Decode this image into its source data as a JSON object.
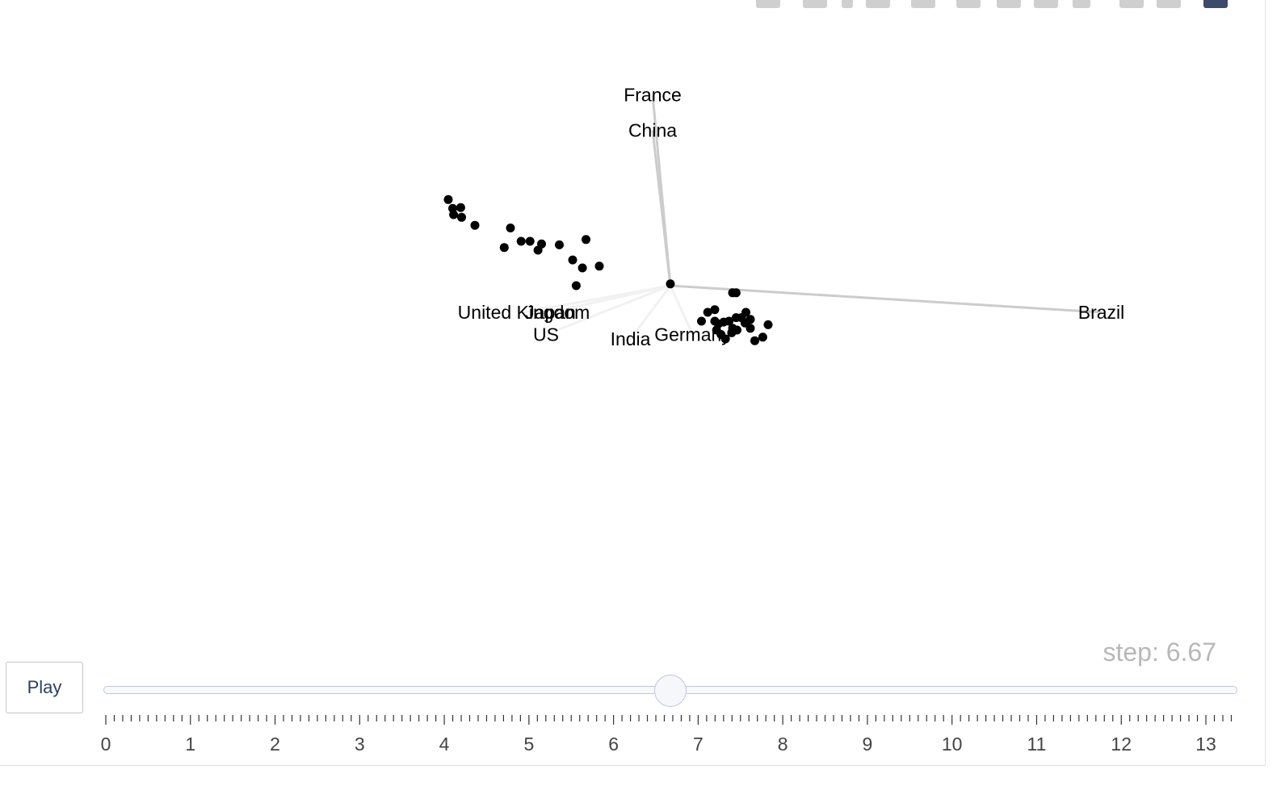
{
  "chart_data": {
    "type": "scatter",
    "axes": [
      {
        "name": "France",
        "x": -0.2,
        "y": 2.15
      },
      {
        "name": "China",
        "x": -0.2,
        "y": 1.75
      },
      {
        "name": "United Kingdom",
        "x": -1.65,
        "y": -0.3
      },
      {
        "name": "Japan",
        "x": -1.35,
        "y": -0.3
      },
      {
        "name": "US",
        "x": -1.4,
        "y": -0.55
      },
      {
        "name": "India",
        "x": -0.45,
        "y": -0.6
      },
      {
        "name": "Germany",
        "x": 0.25,
        "y": -0.55
      },
      {
        "name": "Brazil",
        "x": 4.85,
        "y": -0.3
      }
    ],
    "points": [
      [
        -2.5,
        0.97
      ],
      [
        -2.45,
        0.87
      ],
      [
        -2.44,
        0.8
      ],
      [
        -2.35,
        0.77
      ],
      [
        -2.36,
        0.88
      ],
      [
        -2.2,
        0.68
      ],
      [
        -1.8,
        0.65
      ],
      [
        -1.87,
        0.43
      ],
      [
        -1.68,
        0.5
      ],
      [
        -1.58,
        0.5
      ],
      [
        -1.45,
        0.47
      ],
      [
        -1.49,
        0.4
      ],
      [
        -1.25,
        0.46
      ],
      [
        -1.1,
        0.29
      ],
      [
        -0.99,
        0.2
      ],
      [
        -0.95,
        0.52
      ],
      [
        -0.8,
        0.22
      ],
      [
        -1.06,
        0.0
      ],
      [
        0.0,
        0.02
      ],
      [
        0.7,
        -0.08
      ],
      [
        0.74,
        -0.08
      ],
      [
        0.42,
        -0.3
      ],
      [
        0.5,
        -0.27
      ],
      [
        0.35,
        -0.4
      ],
      [
        0.5,
        -0.4
      ],
      [
        0.54,
        -0.43
      ],
      [
        0.6,
        -0.41
      ],
      [
        0.66,
        -0.4
      ],
      [
        0.74,
        -0.36
      ],
      [
        0.8,
        -0.36
      ],
      [
        0.84,
        -0.42
      ],
      [
        0.9,
        -0.38
      ],
      [
        0.85,
        -0.3
      ],
      [
        1.1,
        -0.44
      ],
      [
        0.9,
        -0.48
      ],
      [
        0.52,
        -0.5
      ],
      [
        0.57,
        -0.55
      ],
      [
        0.69,
        -0.53
      ],
      [
        0.75,
        -0.5
      ],
      [
        0.62,
        -0.6
      ],
      [
        0.95,
        -0.62
      ],
      [
        1.04,
        -0.58
      ],
      [
        0.7,
        -0.48
      ]
    ],
    "slider": {
      "min": 0,
      "max": 13,
      "value": 6.67,
      "tick_labels": [
        "0",
        "1",
        "2",
        "3",
        "4",
        "5",
        "6",
        "7",
        "8",
        "9",
        "10",
        "11",
        "12",
        "13"
      ],
      "current_label": "step: 6.67"
    },
    "colors": {
      "points": "#000000",
      "axis_lines": "#cccccc",
      "text": "#000000",
      "slider_text": "#444444"
    }
  },
  "controls": {
    "play_label": "Play",
    "step_label": "step: 6.67"
  }
}
